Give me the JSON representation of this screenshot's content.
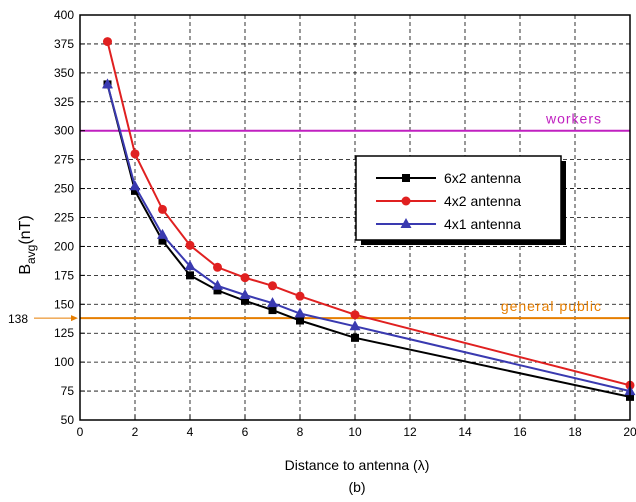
{
  "chart_data": {
    "type": "line",
    "xlabel": "Distance to antenna (λ)",
    "ylabel_main": "B",
    "ylabel_sub": "avg",
    "ylabel_unit": "(nT)",
    "caption": "(b)",
    "xlim": [
      0,
      20
    ],
    "ylim": [
      50,
      400
    ],
    "xticks": [
      0,
      2,
      4,
      6,
      8,
      10,
      12,
      14,
      16,
      18,
      20
    ],
    "yticks": [
      50,
      75,
      100,
      125,
      150,
      175,
      200,
      225,
      250,
      275,
      300,
      325,
      350,
      375,
      400
    ],
    "grid": true,
    "legend_position": "center-right",
    "series": [
      {
        "name": "6x2  antenna",
        "color": "#000000",
        "marker": "square",
        "x": [
          1,
          2,
          3,
          4,
          5,
          6,
          7,
          8,
          10,
          20
        ],
        "y": [
          340,
          248,
          205,
          175,
          162,
          153,
          145,
          136,
          121,
          70
        ]
      },
      {
        "name": "4x2  antenna",
        "color": "#e02020",
        "marker": "circle",
        "x": [
          1,
          2,
          3,
          4,
          5,
          6,
          7,
          8,
          10,
          20
        ],
        "y": [
          377,
          280,
          232,
          201,
          182,
          173,
          166,
          157,
          141,
          80
        ]
      },
      {
        "name": "4x1  antenna",
        "color": "#3a3ab0",
        "marker": "triangle",
        "x": [
          1,
          2,
          3,
          4,
          5,
          6,
          7,
          8,
          10,
          20
        ],
        "y": [
          340,
          252,
          210,
          183,
          166,
          158,
          151,
          142,
          131,
          75
        ]
      }
    ],
    "reference_lines": [
      {
        "label": "workers",
        "y": 300,
        "color": "#c020c0"
      },
      {
        "label": "general public",
        "y": 138,
        "color": "#e67e00",
        "value_label": "138"
      }
    ]
  }
}
